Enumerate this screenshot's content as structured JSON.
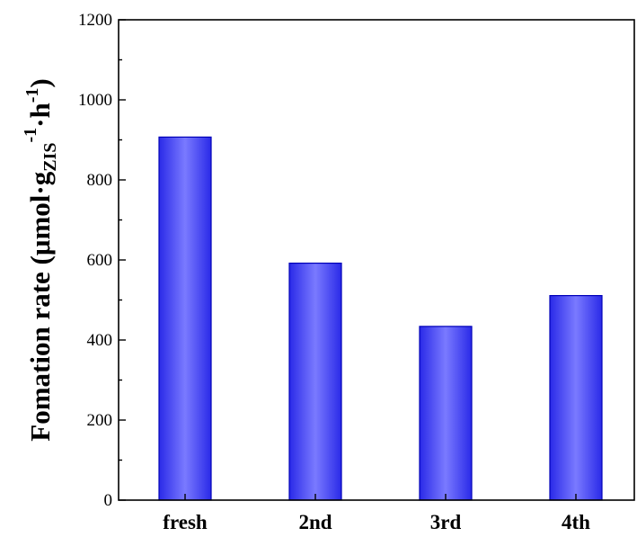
{
  "chart_data": {
    "type": "bar",
    "categories": [
      "fresh",
      "2nd",
      "3rd",
      "4th"
    ],
    "values": [
      907,
      592,
      434,
      511
    ],
    "title": "",
    "xlabel": "",
    "ylabel": {
      "main": "Fomation rate (μmol·g",
      "sub": "ZIS",
      "sup1": "-1",
      "mid": "·h",
      "sup2": "-1",
      "end": ")"
    },
    "ylim": [
      0,
      1200
    ],
    "yticks": [
      0,
      200,
      400,
      600,
      800,
      1000,
      1200
    ],
    "grid": false,
    "bar_color": "#4a4af5",
    "bar_highlight": "#8080ff"
  }
}
